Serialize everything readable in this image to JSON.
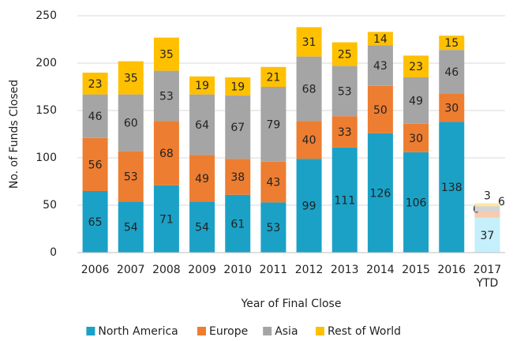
{
  "chart_data": {
    "type": "stacked_bar",
    "y_label": "No. of Funds Closed",
    "x_label": "Year of Final Close",
    "categories": [
      "2006",
      "2007",
      "2008",
      "2009",
      "2010",
      "2011",
      "2012",
      "2013",
      "2014",
      "2015",
      "2016",
      "2017 YTD"
    ],
    "series": [
      {
        "name": "North America",
        "color": "#1ba1c6",
        "ytd_color": "#c5effb",
        "values": [
          65,
          54,
          71,
          54,
          61,
          53,
          99,
          111,
          126,
          106,
          138,
          37
        ]
      },
      {
        "name": "Europe",
        "color": "#ed7d31",
        "ytd_color": "#f8cbad",
        "values": [
          56,
          53,
          68,
          49,
          38,
          43,
          40,
          33,
          50,
          30,
          30,
          6
        ]
      },
      {
        "name": "Asia",
        "color": "#a5a5a5",
        "ytd_color": "#d4d4d4",
        "values": [
          46,
          60,
          53,
          64,
          67,
          79,
          68,
          53,
          43,
          49,
          46,
          6
        ]
      },
      {
        "name": "Rest of World",
        "color": "#ffc000",
        "ytd_color": "#ffe699",
        "values": [
          23,
          35,
          35,
          19,
          19,
          21,
          31,
          25,
          14,
          23,
          15,
          3
        ]
      }
    ],
    "ylim": [
      0,
      250
    ],
    "yticks": [
      0,
      50,
      100,
      150,
      200,
      250
    ],
    "grid": true,
    "legend": "bottom"
  }
}
